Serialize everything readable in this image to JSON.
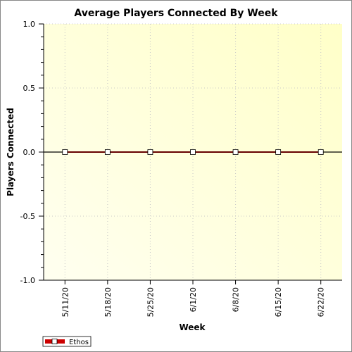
{
  "chart_data": {
    "type": "line",
    "title": "Average Players Connected By Week",
    "xlabel": "Week",
    "ylabel": "Players Connected",
    "categories": [
      "5/11/20",
      "5/18/20",
      "5/25/20",
      "6/1/20",
      "6/8/20",
      "6/15/20",
      "6/22/20"
    ],
    "series": [
      {
        "name": "Ethos",
        "values": [
          0,
          0,
          0,
          0,
          0,
          0,
          0
        ],
        "color": "#cc0000",
        "line_color": "#660000"
      }
    ],
    "ylim": [
      -1.0,
      1.0
    ],
    "y_ticks": [
      "1.0",
      "0.5",
      "0.0",
      "-0.5",
      "-1.0"
    ],
    "grid": true,
    "legend_position": "bottom-left",
    "plot_background": [
      "#fffff0",
      "#ffffc8"
    ]
  }
}
